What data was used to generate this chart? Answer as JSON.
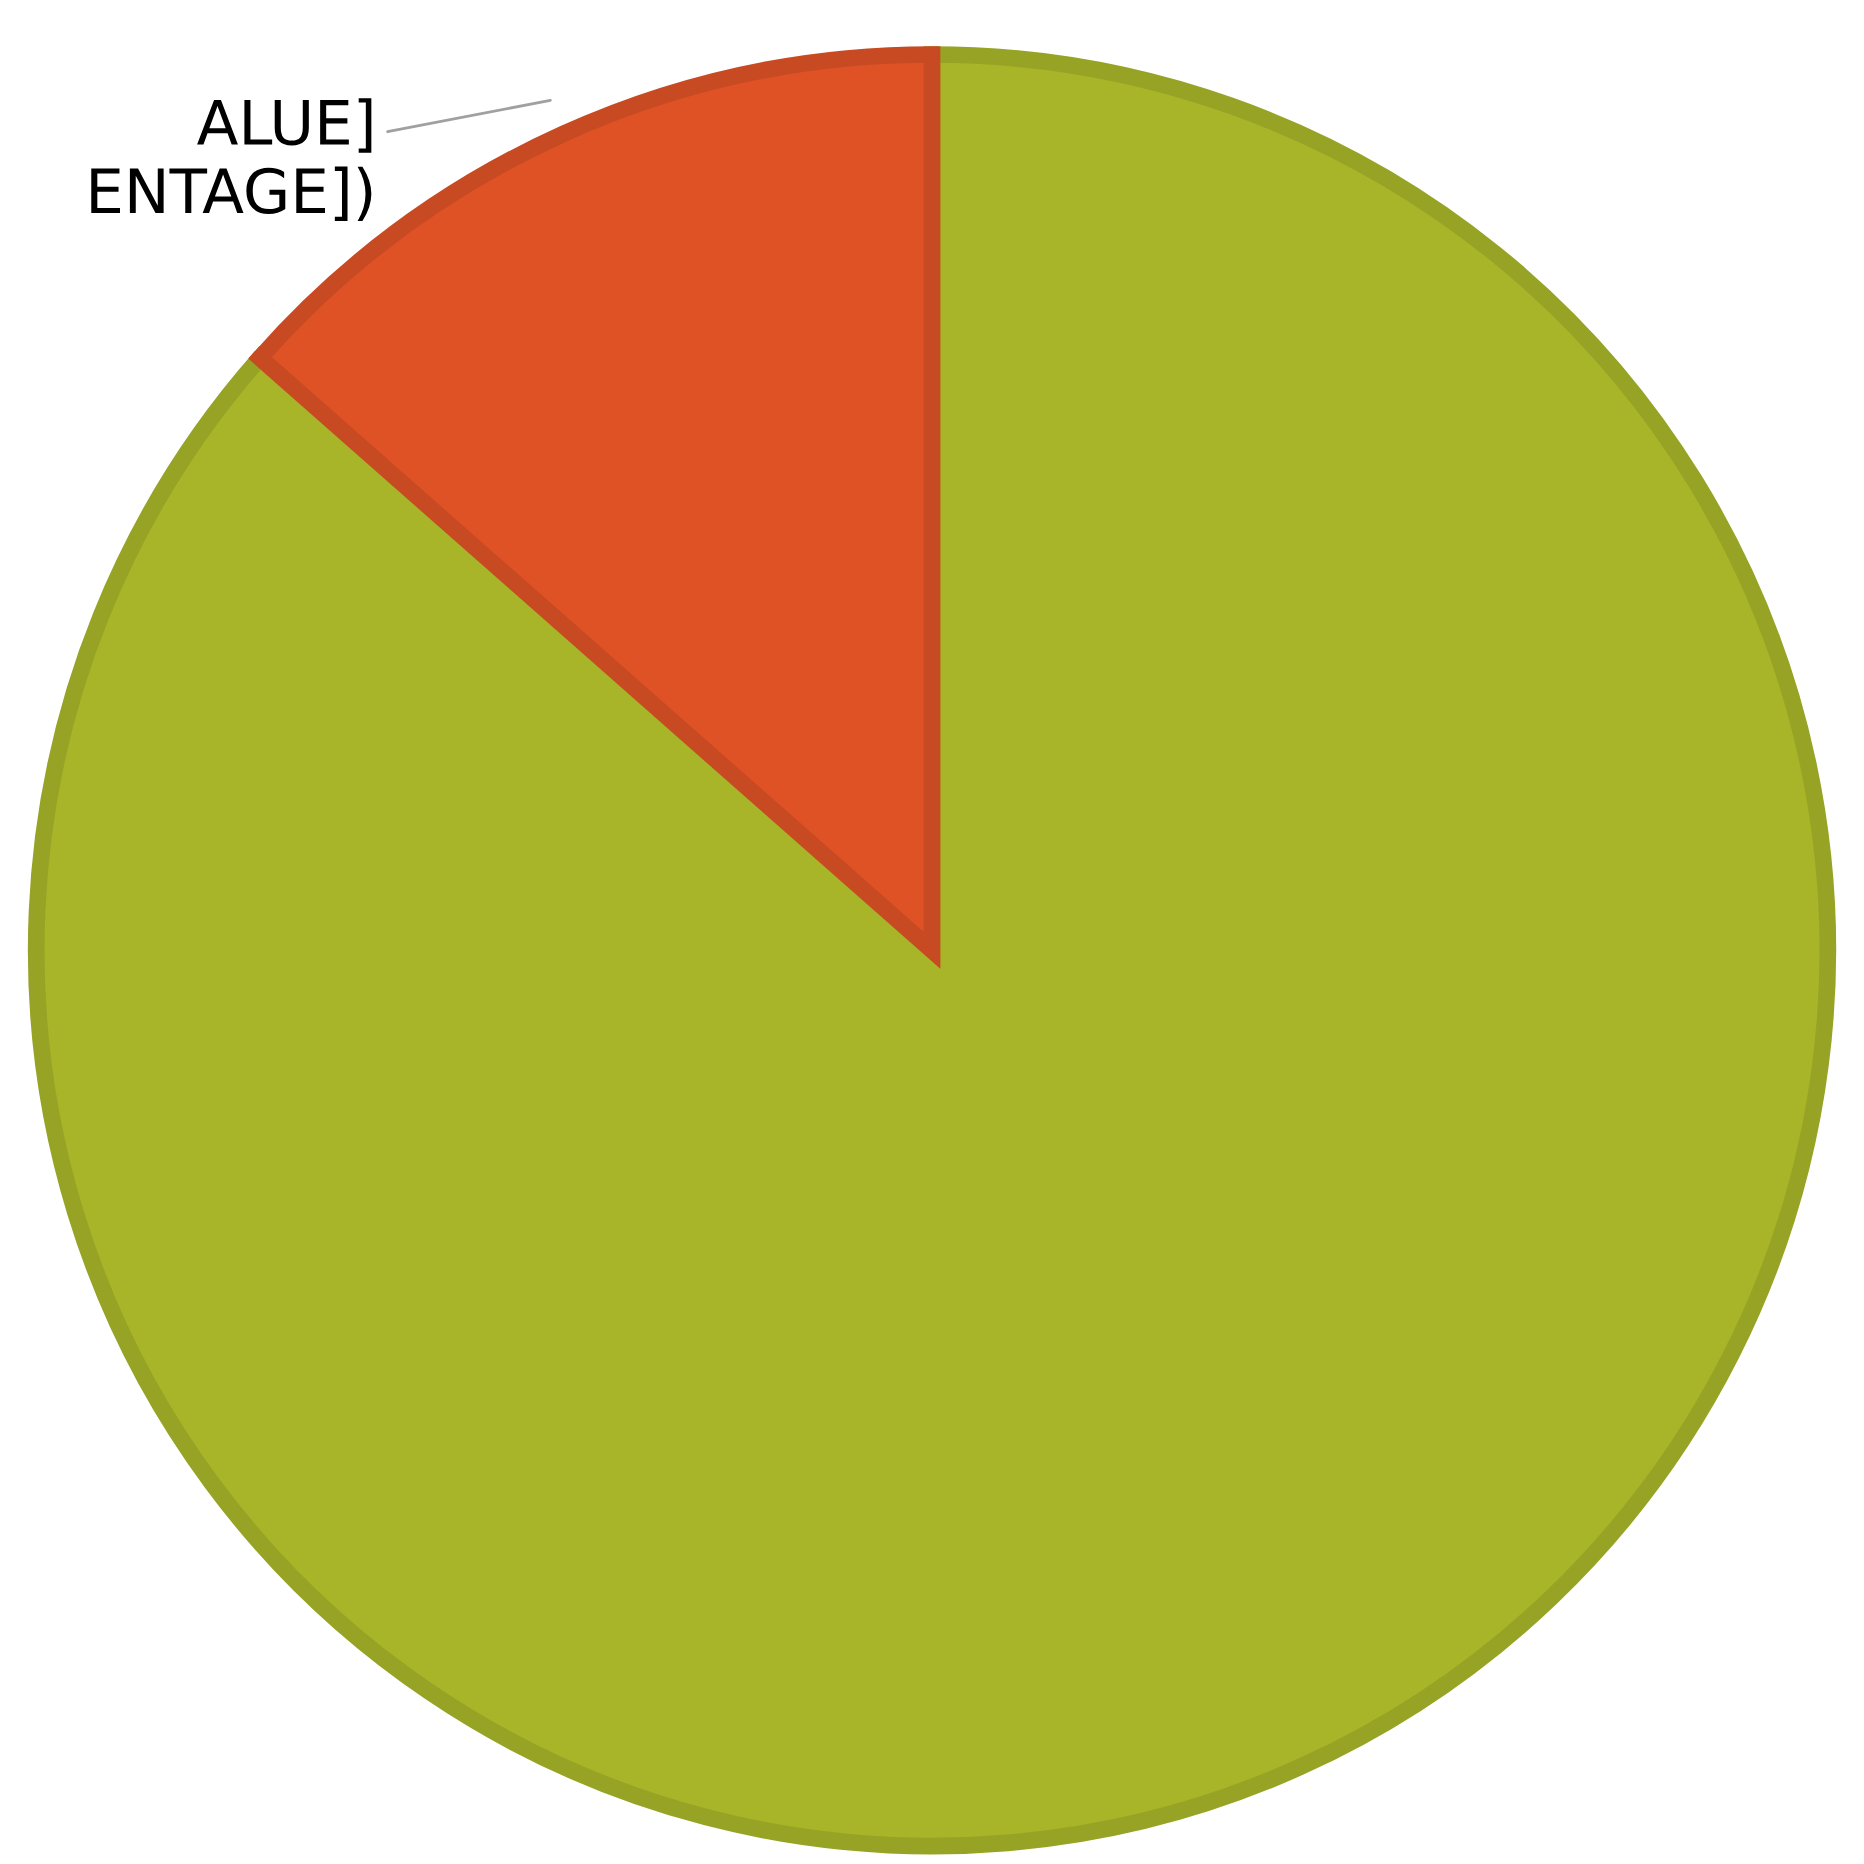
{
  "chart_data": {
    "type": "pie",
    "categories": [
      null,
      null
    ],
    "values": [
      86.5,
      13.5
    ],
    "colors": [
      "#a8b528",
      "#de5226"
    ],
    "annotations": [
      "ALUE]",
      "ENTAGE])"
    ],
    "legend": false
  }
}
